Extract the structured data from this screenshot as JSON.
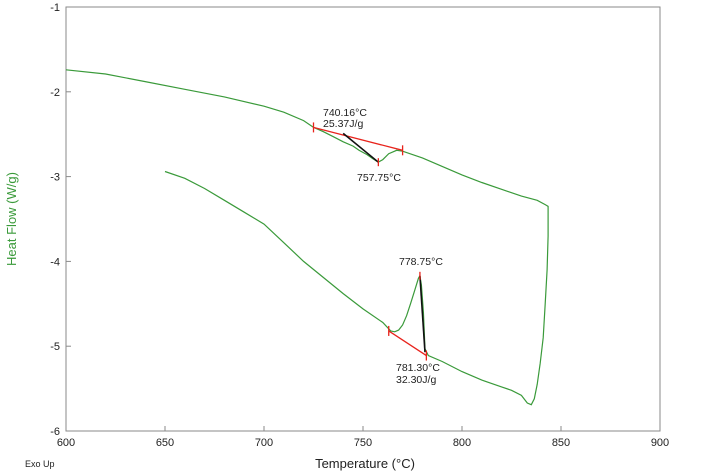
{
  "chart_data": {
    "type": "line",
    "title": "",
    "xlabel": "Temperature (°C)",
    "ylabel": "Heat Flow (W/g)",
    "footer_note": "Exo Up",
    "xlim": [
      600,
      900
    ],
    "ylim": [
      -6,
      -1
    ],
    "x_ticks": [
      "600",
      "650",
      "700",
      "750",
      "800",
      "850",
      "900"
    ],
    "y_ticks": [
      "-1",
      "-2",
      "-3",
      "-4",
      "-5",
      "-6"
    ],
    "grid": false,
    "colors": {
      "curve": "#3a9a3a",
      "baseline": "#e8231c",
      "integral": "#111111",
      "axis_title": "#3a9a3a"
    },
    "series": [
      {
        "points": [
          [
            600,
            -1.74
          ],
          [
            620,
            -1.79
          ],
          [
            640,
            -1.88
          ],
          [
            660,
            -1.97
          ],
          [
            680,
            -2.06
          ],
          [
            700,
            -2.17
          ],
          [
            710,
            -2.24
          ],
          [
            720,
            -2.34
          ],
          [
            725,
            -2.42
          ],
          [
            730,
            -2.47
          ],
          [
            735,
            -2.53
          ],
          [
            740,
            -2.59
          ],
          [
            745,
            -2.64
          ],
          [
            748,
            -2.69
          ],
          [
            752,
            -2.74
          ],
          [
            755,
            -2.79
          ],
          [
            757.75,
            -2.83
          ],
          [
            760,
            -2.8
          ],
          [
            763,
            -2.73
          ],
          [
            767,
            -2.69
          ],
          [
            770,
            -2.7
          ],
          [
            780,
            -2.78
          ],
          [
            790,
            -2.88
          ],
          [
            800,
            -2.98
          ],
          [
            810,
            -3.07
          ],
          [
            820,
            -3.15
          ],
          [
            830,
            -3.23
          ],
          [
            838,
            -3.28
          ],
          [
            842,
            -3.33
          ],
          [
            843.5,
            -3.35
          ],
          [
            843.5,
            -3.7
          ],
          [
            843,
            -4.1
          ],
          [
            842,
            -4.5
          ],
          [
            841,
            -4.9
          ],
          [
            839.5,
            -5.2
          ],
          [
            838,
            -5.45
          ],
          [
            836.5,
            -5.62
          ],
          [
            835,
            -5.69
          ],
          [
            833,
            -5.67
          ],
          [
            830,
            -5.58
          ],
          [
            825,
            -5.52
          ],
          [
            820,
            -5.48
          ],
          [
            810,
            -5.4
          ],
          [
            800,
            -5.3
          ],
          [
            790,
            -5.18
          ],
          [
            783,
            -5.11
          ],
          [
            781.3,
            -5.03
          ],
          [
            780.5,
            -4.6
          ],
          [
            779.5,
            -4.28
          ],
          [
            778.75,
            -4.17
          ],
          [
            778,
            -4.2
          ],
          [
            776,
            -4.35
          ],
          [
            774,
            -4.5
          ],
          [
            772,
            -4.64
          ],
          [
            770,
            -4.75
          ],
          [
            768,
            -4.81
          ],
          [
            766,
            -4.83
          ],
          [
            764,
            -4.82
          ],
          [
            760,
            -4.72
          ],
          [
            750,
            -4.56
          ],
          [
            740,
            -4.38
          ],
          [
            730,
            -4.19
          ],
          [
            720,
            -4.0
          ],
          [
            710,
            -3.78
          ],
          [
            700,
            -3.56
          ],
          [
            690,
            -3.42
          ],
          [
            680,
            -3.28
          ],
          [
            670,
            -3.14
          ],
          [
            660,
            -3.02
          ],
          [
            650,
            -2.94
          ]
        ]
      }
    ],
    "annotations": [
      {
        "kind": "peak",
        "onset_label": "740.16°C",
        "area_label": "25.37J/g",
        "peak_label": "757.75°C",
        "baseline": [
          [
            725,
            -2.42
          ],
          [
            770,
            -2.69
          ]
        ],
        "integral": [
          [
            740,
            -2.49
          ],
          [
            757.75,
            -2.83
          ]
        ]
      },
      {
        "kind": "peak",
        "peak_label": "778.75°C",
        "onset_label": "781.30°C",
        "area_label": "32.30J/g",
        "baseline": [
          [
            763,
            -4.82
          ],
          [
            782,
            -5.11
          ]
        ],
        "integral": [
          [
            778.75,
            -4.17
          ],
          [
            781.3,
            -5.07
          ]
        ]
      }
    ]
  }
}
